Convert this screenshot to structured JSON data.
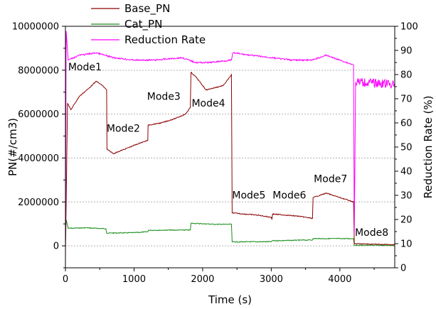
{
  "chart_data": {
    "type": "line",
    "xlabel": "Time (s)",
    "ylabel_left": "PN(#/cm3)",
    "ylabel_right": "Reduction Rate (%)",
    "xlim": [
      0,
      4800
    ],
    "ylim_left": [
      -1000000,
      10000000
    ],
    "ylim_right": [
      0,
      100
    ],
    "x_ticks": [
      0,
      1000,
      2000,
      3000,
      4000
    ],
    "y_left_ticks": [
      0,
      2000000,
      4000000,
      6000000,
      8000000,
      10000000
    ],
    "y_left_tick_labels": [
      "0",
      "2000000",
      "4000000",
      "6000000",
      "8000000",
      "10000000"
    ],
    "y_right_ticks": [
      0,
      10,
      20,
      30,
      40,
      50,
      60,
      70,
      80,
      90,
      100
    ],
    "grid": "dashed horizontal at left-axis major ticks",
    "legend_position": "top-left",
    "series": [
      {
        "name": "Base_PN",
        "axis": "left",
        "color": "#8b0000",
        "points": [
          [
            0,
            0
          ],
          [
            10,
            1800000
          ],
          [
            30,
            6500000
          ],
          [
            80,
            6200000
          ],
          [
            200,
            6800000
          ],
          [
            350,
            7200000
          ],
          [
            450,
            7500000
          ],
          [
            540,
            7300000
          ],
          [
            600,
            7100000
          ],
          [
            605,
            4400000
          ],
          [
            700,
            4200000
          ],
          [
            900,
            4450000
          ],
          [
            1100,
            4700000
          ],
          [
            1200,
            4800000
          ],
          [
            1205,
            5500000
          ],
          [
            1400,
            5600000
          ],
          [
            1600,
            5800000
          ],
          [
            1750,
            6000000
          ],
          [
            1820,
            6300000
          ],
          [
            1830,
            7900000
          ],
          [
            1900,
            7700000
          ],
          [
            2050,
            7100000
          ],
          [
            2300,
            7300000
          ],
          [
            2400,
            7700000
          ],
          [
            2420,
            7800000
          ],
          [
            2430,
            1500000
          ],
          [
            2600,
            1450000
          ],
          [
            2800,
            1400000
          ],
          [
            3000,
            1300000
          ],
          [
            3010,
            1200000
          ],
          [
            3020,
            1450000
          ],
          [
            3200,
            1400000
          ],
          [
            3400,
            1350000
          ],
          [
            3600,
            1250000
          ],
          [
            3610,
            2200000
          ],
          [
            3800,
            2400000
          ],
          [
            4000,
            2200000
          ],
          [
            4200,
            2000000
          ],
          [
            4210,
            100000
          ],
          [
            4800,
            50000
          ]
        ]
      },
      {
        "name": "Cat_PN",
        "axis": "left",
        "color": "#1a8c1a",
        "points": [
          [
            0,
            0
          ],
          [
            10,
            1200000
          ],
          [
            40,
            800000
          ],
          [
            300,
            820000
          ],
          [
            590,
            780000
          ],
          [
            600,
            580000
          ],
          [
            1000,
            600000
          ],
          [
            1200,
            640000
          ],
          [
            1210,
            710000
          ],
          [
            1820,
            720000
          ],
          [
            1830,
            1030000
          ],
          [
            2200,
            980000
          ],
          [
            2420,
            980000
          ],
          [
            2430,
            180000
          ],
          [
            3000,
            190000
          ],
          [
            3010,
            230000
          ],
          [
            3600,
            270000
          ],
          [
            3610,
            330000
          ],
          [
            4200,
            330000
          ],
          [
            4210,
            30000
          ],
          [
            4800,
            20000
          ]
        ]
      },
      {
        "name": "Reduction Rate",
        "axis": "right",
        "color": "#ff00ff",
        "points": [
          [
            0,
            0
          ],
          [
            10,
            98
          ],
          [
            40,
            86
          ],
          [
            200,
            88
          ],
          [
            450,
            89
          ],
          [
            700,
            87
          ],
          [
            1000,
            86
          ],
          [
            1300,
            86
          ],
          [
            1700,
            87
          ],
          [
            1900,
            85
          ],
          [
            2100,
            85
          ],
          [
            2420,
            86
          ],
          [
            2440,
            89
          ],
          [
            2700,
            88
          ],
          [
            3000,
            87
          ],
          [
            3300,
            86
          ],
          [
            3600,
            86
          ],
          [
            3800,
            88
          ],
          [
            4000,
            86
          ],
          [
            4200,
            84
          ],
          [
            4210,
            14
          ],
          [
            4230,
            77
          ],
          [
            4800,
            76
          ]
        ]
      }
    ],
    "annotations": [
      {
        "text": "Mode1",
        "x": 40,
        "y": 8000000
      },
      {
        "text": "Mode2",
        "x": 600,
        "y": 5200000
      },
      {
        "text": "Mode3",
        "x": 1190,
        "y": 6650000
      },
      {
        "text": "Mode4",
        "x": 1840,
        "y": 6350000
      },
      {
        "text": "Mode5",
        "x": 2430,
        "y": 2150000
      },
      {
        "text": "Mode6",
        "x": 3020,
        "y": 2150000
      },
      {
        "text": "Mode7",
        "x": 3620,
        "y": 2900000
      },
      {
        "text": "Mode8",
        "x": 4220,
        "y": 450000
      }
    ]
  }
}
